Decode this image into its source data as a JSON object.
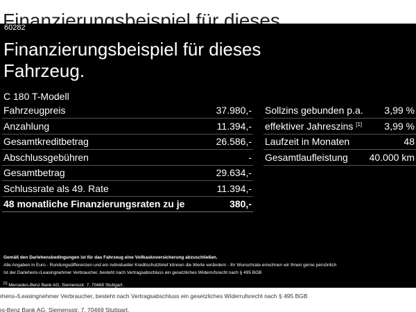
{
  "background": {
    "top_text": "Finanzierungsbeispiel für dieses",
    "bottom_line1": "ehens-/Leasingnehmer Verbraucher, besteht nach Vertragsabschluss ein gesetzliches Widerrufsrecht nach § 495 BGB",
    "bottom_line2": "es-Benz Bank AG, Siemensstr. 7, 70469 Stuttgart."
  },
  "overlay": {
    "code": "60282",
    "heading": "Finanzierungsbeispiel für dieses Fahrzeug.",
    "model": "C 180 T-Modell",
    "left_rows": [
      {
        "label": "Fahrzeugpreis",
        "value": "37.980,-"
      },
      {
        "label": "Anzahlung",
        "value": "11.394,-"
      },
      {
        "label": "Gesamtkreditbetrag",
        "value": "26.586,-"
      },
      {
        "label": "Abschlussgebühren",
        "value": "-"
      },
      {
        "label": "Gesamtbetrag",
        "value": "29.634,-"
      },
      {
        "label": "Schlussrate als 49. Rate",
        "value": "11.394,-"
      }
    ],
    "total": {
      "label": "48 monatliche Finanzierungsraten zu je",
      "value": "380,-"
    },
    "right_rows": [
      {
        "label": "Sollzins gebunden p.a.",
        "value": "3,99 %"
      },
      {
        "label": "effektiver Jahreszins",
        "sup": "[1]",
        "value": "3,99 %"
      },
      {
        "label": "Laufzeit in Monaten",
        "value": "48"
      },
      {
        "label": "Gesamtlaufleistung",
        "value": "40.000 km"
      }
    ],
    "notes": {
      "bold": "Gemäß den Darlehensbedingungen ist für das Fahrzeug eine Vollkaskoversicherung abzuschließen.",
      "line1": "Alle Angaben in Euro - Rundungsdifferenzen und ein individueller Kreditschutzbrief können die Werte verändern - Ihr Wunschrate errechnen wir Ihnen gerne persönlich",
      "line2": "Ist der Darlehens-/Leasingnehmer Verbraucher, besteht nach Vertragsabschluss ein gesetzliches Widerrufsrecht nach § 495 BGB",
      "footnote_mark": "[1]",
      "footnote": "Mercedes-Benz Bank AG, Siemensstr. 7, 70469 Stuttgart."
    }
  }
}
